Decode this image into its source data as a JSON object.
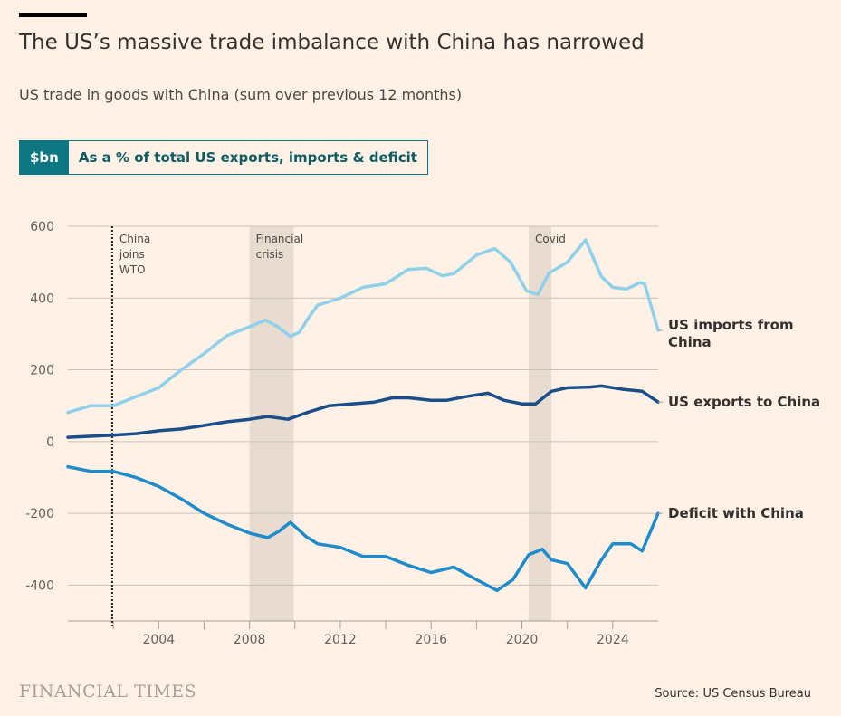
{
  "header": {
    "title": "The US’s massive trade imbalance with China has narrowed",
    "subtitle": "US trade in goods with China (sum over previous 12 months)",
    "toggle": [
      {
        "label": "$bn",
        "active": true
      },
      {
        "label": "As a % of total US exports, imports & deficit",
        "active": false
      }
    ]
  },
  "footer": {
    "brand": "FINANCIAL TIMES",
    "source": "Source: US Census Bureau"
  },
  "chart_data": {
    "type": "line",
    "title": "",
    "xlabel": "",
    "ylabel": "",
    "xlim": [
      2000,
      2026
    ],
    "ylim": [
      -500,
      600
    ],
    "yticks": [
      600,
      400,
      200,
      0,
      -200,
      -400
    ],
    "xticks": [
      2004,
      2008,
      2012,
      2016,
      2020,
      2024
    ],
    "grid": true,
    "annotations": [
      {
        "type": "line",
        "x": 2001.95,
        "label": [
          "China",
          "joins",
          "WTO"
        ]
      },
      {
        "type": "band",
        "x": [
          2008.0,
          2009.95
        ],
        "label": [
          "Financial",
          "crisis"
        ]
      },
      {
        "type": "band",
        "x": [
          2020.3,
          2021.3
        ],
        "label": [
          "Covid"
        ]
      }
    ],
    "series": [
      {
        "name": "US imports from China",
        "label_lines": [
          "US imports from",
          "China"
        ],
        "color": "#8fd0ea",
        "points": [
          [
            2000,
            81
          ],
          [
            2001,
            100
          ],
          [
            2002,
            100
          ],
          [
            2003,
            125
          ],
          [
            2004,
            150
          ],
          [
            2005,
            200
          ],
          [
            2006,
            245
          ],
          [
            2007,
            295
          ],
          [
            2008,
            320
          ],
          [
            2008.7,
            338
          ],
          [
            2009.2,
            322
          ],
          [
            2009.8,
            293
          ],
          [
            2010.2,
            305
          ],
          [
            2010.6,
            345
          ],
          [
            2011,
            380
          ],
          [
            2012,
            400
          ],
          [
            2013,
            430
          ],
          [
            2014,
            440
          ],
          [
            2015,
            480
          ],
          [
            2015.8,
            483
          ],
          [
            2016.5,
            462
          ],
          [
            2017,
            468
          ],
          [
            2018,
            520
          ],
          [
            2018.8,
            538
          ],
          [
            2019.5,
            500
          ],
          [
            2020.2,
            420
          ],
          [
            2020.7,
            410
          ],
          [
            2021.2,
            470
          ],
          [
            2022,
            500
          ],
          [
            2022.8,
            562
          ],
          [
            2023.5,
            460
          ],
          [
            2024,
            430
          ],
          [
            2024.6,
            425
          ],
          [
            2025.2,
            443
          ],
          [
            2025.4,
            440
          ],
          [
            2026,
            310
          ]
        ]
      },
      {
        "name": "US exports to China",
        "label_lines": [
          "US exports to China"
        ],
        "color": "#1a4e8a",
        "points": [
          [
            2000,
            12
          ],
          [
            2002,
            18
          ],
          [
            2003,
            22
          ],
          [
            2004,
            30
          ],
          [
            2005,
            35
          ],
          [
            2006,
            45
          ],
          [
            2007,
            55
          ],
          [
            2008,
            62
          ],
          [
            2008.8,
            70
          ],
          [
            2009.7,
            62
          ],
          [
            2010.5,
            80
          ],
          [
            2011.5,
            100
          ],
          [
            2012.5,
            105
          ],
          [
            2013.5,
            110
          ],
          [
            2014.3,
            122
          ],
          [
            2015,
            122
          ],
          [
            2016,
            115
          ],
          [
            2016.7,
            115
          ],
          [
            2017.5,
            125
          ],
          [
            2018.5,
            135
          ],
          [
            2019.2,
            115
          ],
          [
            2020,
            105
          ],
          [
            2020.6,
            105
          ],
          [
            2021.3,
            140
          ],
          [
            2022,
            150
          ],
          [
            2023,
            152
          ],
          [
            2023.5,
            155
          ],
          [
            2024.5,
            145
          ],
          [
            2025.3,
            140
          ],
          [
            2026,
            110
          ]
        ]
      },
      {
        "name": "Deficit with China",
        "label_lines": [
          "Deficit with China"
        ],
        "color": "#1e8ccc",
        "points": [
          [
            2000,
            -70
          ],
          [
            2001,
            -83
          ],
          [
            2002,
            -83
          ],
          [
            2003,
            -100
          ],
          [
            2004,
            -125
          ],
          [
            2005,
            -160
          ],
          [
            2006,
            -200
          ],
          [
            2007,
            -230
          ],
          [
            2008,
            -255
          ],
          [
            2008.8,
            -268
          ],
          [
            2009.3,
            -250
          ],
          [
            2009.8,
            -225
          ],
          [
            2010.5,
            -265
          ],
          [
            2011,
            -285
          ],
          [
            2012,
            -295
          ],
          [
            2013,
            -320
          ],
          [
            2014,
            -320
          ],
          [
            2015,
            -345
          ],
          [
            2016,
            -365
          ],
          [
            2017,
            -350
          ],
          [
            2018,
            -385
          ],
          [
            2018.9,
            -415
          ],
          [
            2019.6,
            -385
          ],
          [
            2020.3,
            -315
          ],
          [
            2020.9,
            -300
          ],
          [
            2021.3,
            -330
          ],
          [
            2022,
            -340
          ],
          [
            2022.8,
            -408
          ],
          [
            2023.5,
            -330
          ],
          [
            2024,
            -285
          ],
          [
            2024.8,
            -285
          ],
          [
            2025.3,
            -305
          ],
          [
            2026,
            -200
          ]
        ]
      }
    ]
  }
}
